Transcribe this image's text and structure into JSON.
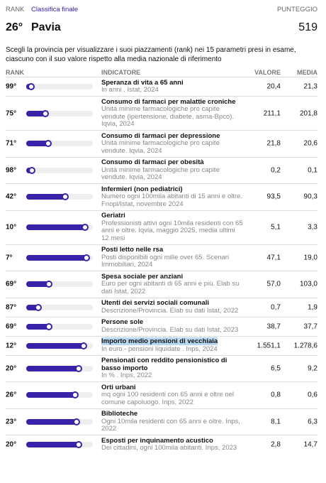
{
  "header": {
    "rank_label": "RANK",
    "tab": "Classifica finale",
    "score_label": "PUNTEGGIO",
    "rank": "26°",
    "province": "Pavia",
    "score": "519"
  },
  "intro": "Scegli la provincia per visualizzare i suoi piazzamenti (rank) nei 15 parametri presi in esame, ciascuno con il suo valore rispetto alla media nazionale di riferimento",
  "table": {
    "columns": [
      "RANK",
      "INDICATORE",
      "VALORE",
      "MEDIA"
    ],
    "rows": [
      {
        "rank": {
          "value": 99,
          "label": "99°"
        },
        "title": "Speranza di vita a 65 anni",
        "description": "In anni . Istat, 2024",
        "value": "20,4",
        "average": "21,3"
      },
      {
        "rank": {
          "value": 75,
          "label": "75°"
        },
        "title": "Consumo di farmaci per malattie croniche",
        "description": "Unità minime farmacologiche pro capite vendute (ipertensione, diabete, asma-Bpco). Iqvia, 2024",
        "value": "211,1",
        "average": "201,8"
      },
      {
        "rank": {
          "value": 71,
          "label": "71°"
        },
        "title": "Consumo di farmaci per depressione",
        "description": "Unità minime farmacologiche pro capite vendute. Iqvia, 2024",
        "value": "21,8",
        "average": "20,6"
      },
      {
        "rank": {
          "value": 98,
          "label": "98°"
        },
        "title": "Consumo di farmaci per obesità",
        "description": "Unità minime farmacologiche pro capite vendute. Iqvia, 2024",
        "value": "0,2",
        "average": "0,1"
      },
      {
        "rank": {
          "value": 42,
          "label": "42°"
        },
        "title": "Infermieri (non pediatrici)",
        "description": "Numero ogni 100mila abitanti di 15 anni e oltre. Fnopi/Istat, novembre 2024",
        "value": "93,5",
        "average": "90,3"
      },
      {
        "rank": {
          "value": 10,
          "label": "10°"
        },
        "title": "Geriatri",
        "description": "Professionisti attivi ogni 10mila residenti con 65 anni e oltre. Iqvia, maggio 2025, media ultimi 12 mesi",
        "value": "5,1",
        "average": "3,3"
      },
      {
        "rank": {
          "value": 7,
          "label": "7°"
        },
        "title": "Posti letto nelle rsa",
        "description": "Posti disponibili ogni mille over 65. Scenari Immobiliari, 2024",
        "value": "47,1",
        "average": "19,0"
      },
      {
        "rank": {
          "value": 69,
          "label": "69°"
        },
        "title": "Spesa sociale per anziani",
        "description": "Euro per ogni abitanti di 65 anni e più. Elab su dati Istat, 2022",
        "value": "57,0",
        "average": "103,0"
      },
      {
        "rank": {
          "value": 87,
          "label": "87°"
        },
        "title": "Utenti dei servizi sociali comunali",
        "description": "Descrizione/Provincia. Elab su dati Istat, 2022",
        "value": "0,7",
        "average": "1,9"
      },
      {
        "rank": {
          "value": 69,
          "label": "69°"
        },
        "title": "Persone sole",
        "description": "Descrizione/Provincia. Elab su dati Istat, 2023",
        "value": "38,7",
        "average": "37,7"
      },
      {
        "rank": {
          "value": 12,
          "label": "12°"
        },
        "title": "Importo medio pensioni di vecchiaia",
        "description": "In euro - pensioni liquidate . Inps, 2024",
        "value": "1.551,1",
        "average": "1.278,6",
        "highlighted": true
      },
      {
        "rank": {
          "value": 20,
          "label": "20°"
        },
        "title": "Pensionati con reddito pensionistico di basso importo",
        "description": "In % . Inps, 2022",
        "value": "6,5",
        "average": "9,2"
      },
      {
        "rank": {
          "value": 26,
          "label": "26°"
        },
        "title": "Orti urbani",
        "description": "mq ogni 100 residenti con 65 anni e oltre nel comune capoluogo. Inps, 2022",
        "value": "0,8",
        "average": "0,6"
      },
      {
        "rank": {
          "value": 23,
          "label": "23°"
        },
        "title": "Biblioteche",
        "description": "Ogni 10mila residenti con 65 anni e oltre. Inps, 2022",
        "value": "8,1",
        "average": "6,3"
      },
      {
        "rank": {
          "value": 20,
          "label": "20°"
        },
        "title": "Esposti per inquinamento acustico",
        "description": "Dei cittadini, ogni 100mila abitanti. Inps, 2023",
        "value": "2,8",
        "average": "14,7"
      }
    ]
  }
}
